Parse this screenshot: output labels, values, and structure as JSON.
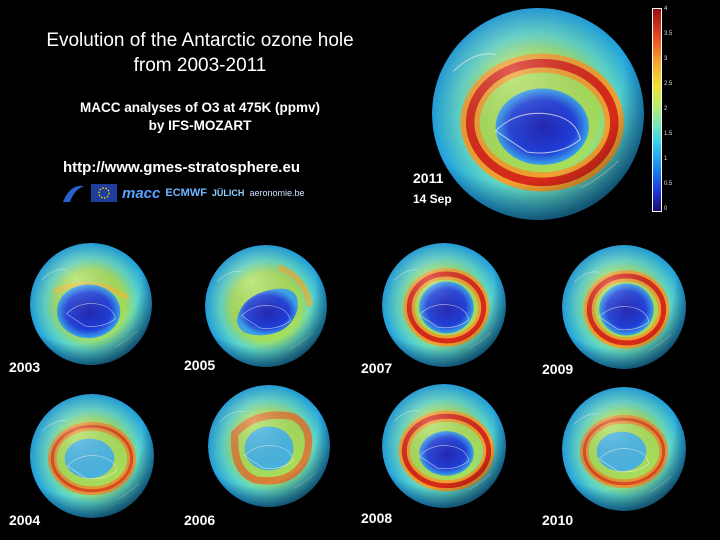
{
  "title_line1": "Evolution of the Antarctic ozone hole",
  "title_line2": "from 2003-2011",
  "subtitle_line1": "MACC analyses of O3 at 475K (ppmv)",
  "subtitle_line2": "by IFS-MOZART",
  "url": "http://www.gmes-stratosphere.eu",
  "logos": [
    "macc",
    "ECMWF",
    "JÜLICH",
    "aeronomie.be"
  ],
  "colorbar": {
    "ticks": [
      "4",
      "3.5",
      "3",
      "2.5",
      "2",
      "1.5",
      "1",
      "0.5",
      "0"
    ]
  },
  "main_map": {
    "year": "2011",
    "date": "14 Sep"
  },
  "maps": [
    {
      "year": "2003"
    },
    {
      "year": "2005"
    },
    {
      "year": "2007"
    },
    {
      "year": "2009"
    },
    {
      "year": "2004"
    },
    {
      "year": "2006"
    },
    {
      "year": "2008"
    },
    {
      "year": "2010"
    }
  ]
}
